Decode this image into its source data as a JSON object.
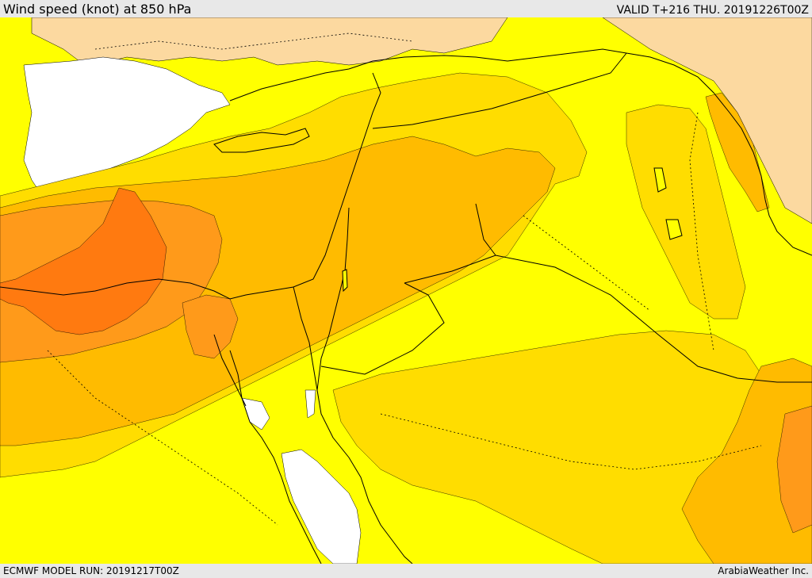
{
  "header": {
    "title": "Wind speed (knot) at 850 hPa",
    "valid_time": "VALID T+216 THU. 20191226T00Z"
  },
  "footer": {
    "model_run": "ECMWF MODEL RUN: 20191217T00Z",
    "credit": "ArabiaWeather Inc."
  },
  "map": {
    "field": "wind speed at 850 hPa",
    "region": "Eastern Mediterranean / Middle East",
    "colors": {
      "white": "#ffffff",
      "light_tan": "#fcd9a0",
      "yellow": "#ffff00",
      "gold": "#ffdd00",
      "amber": "#ffbb00",
      "orange": "#ff9a1a",
      "dark_orange": "#ff7a10",
      "border": "#000000"
    }
  }
}
